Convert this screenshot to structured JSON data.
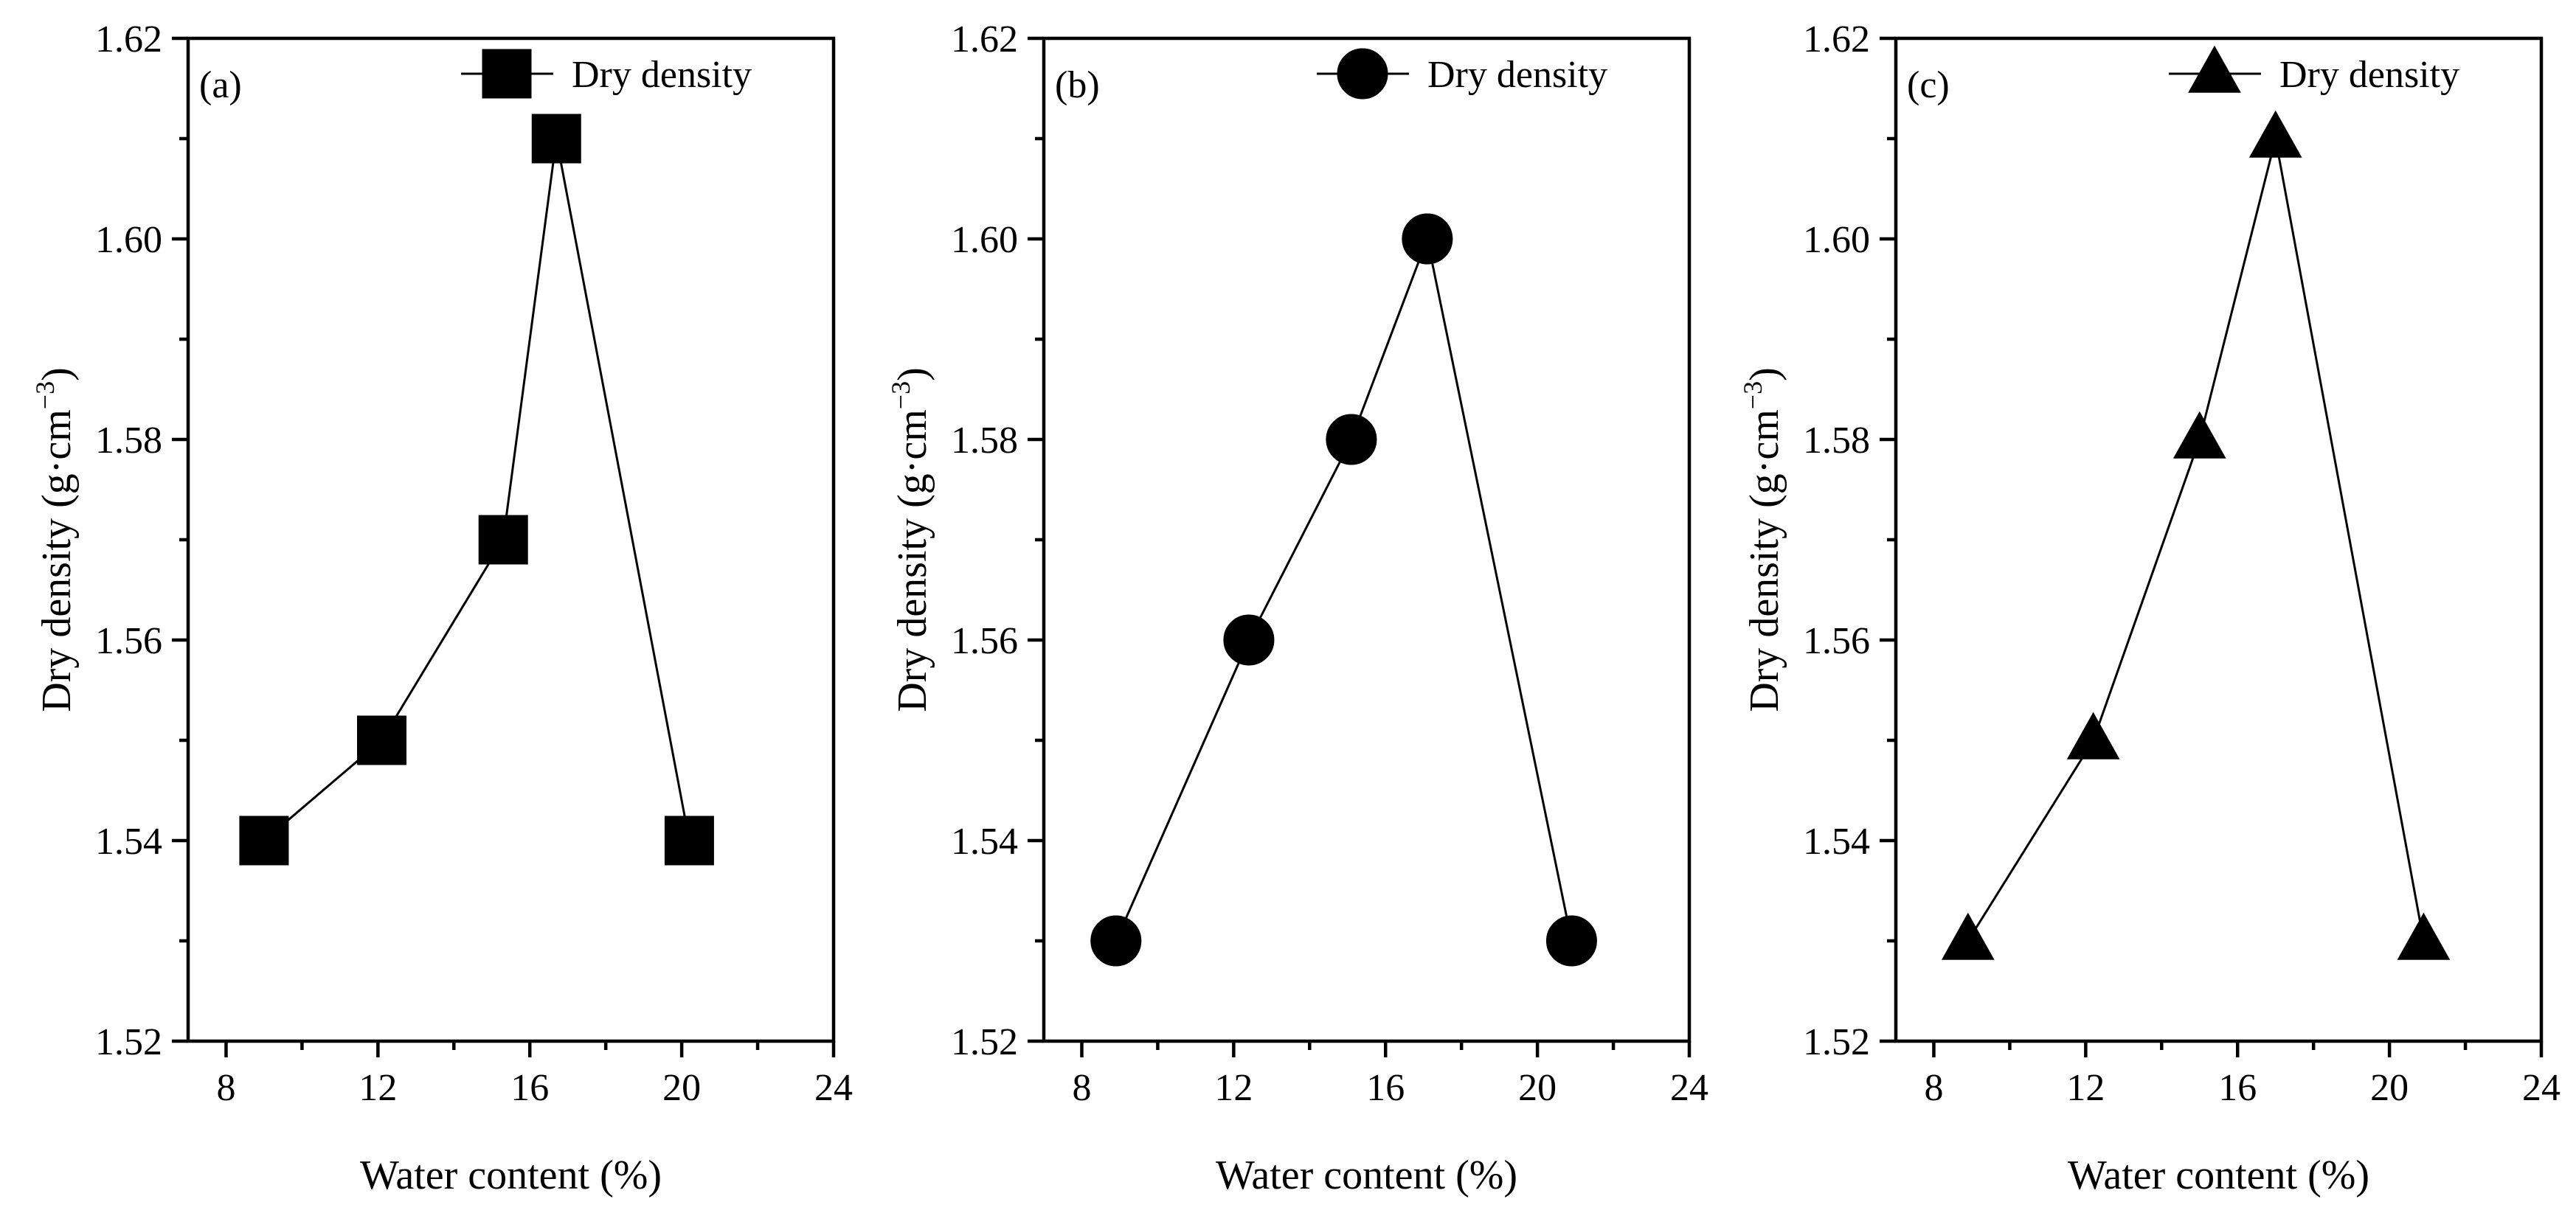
{
  "figure": {
    "ylabel_main": "Dry density (g·cm",
    "ylabel_sup": "−3",
    "ylabel_close": ")"
  },
  "chart_data": [
    {
      "type": "line",
      "panel_label": "(a)",
      "marker": "square",
      "legend": "Dry density",
      "title": "",
      "xlabel": "Water content (%)",
      "ylabel": "Dry density (g·cm−3)",
      "xlim": [
        7,
        24
      ],
      "ylim": [
        1.52,
        1.62
      ],
      "xticks": [
        8,
        12,
        16,
        20,
        24
      ],
      "yticks": [
        1.52,
        1.54,
        1.56,
        1.58,
        1.6,
        1.62
      ],
      "xtick_labels": [
        "8",
        "12",
        "16",
        "20",
        "24"
      ],
      "ytick_labels": [
        "1.52",
        "1.54",
        "1.56",
        "1.58",
        "1.60",
        "1.62"
      ],
      "series": [
        {
          "name": "Dry density",
          "x": [
            9.0,
            12.1,
            15.3,
            16.7,
            20.2
          ],
          "y": [
            1.54,
            1.55,
            1.57,
            1.61,
            1.54
          ]
        }
      ]
    },
    {
      "type": "line",
      "panel_label": "(b)",
      "marker": "circle",
      "legend": "Dry density",
      "title": "",
      "xlabel": "Water content (%)",
      "ylabel": "Dry density (g·cm−3)",
      "xlim": [
        7,
        24
      ],
      "ylim": [
        1.52,
        1.62
      ],
      "xticks": [
        8,
        12,
        16,
        20,
        24
      ],
      "yticks": [
        1.52,
        1.54,
        1.56,
        1.58,
        1.6,
        1.62
      ],
      "xtick_labels": [
        "8",
        "12",
        "16",
        "20",
        "24"
      ],
      "ytick_labels": [
        "1.52",
        "1.54",
        "1.56",
        "1.58",
        "1.60",
        "1.62"
      ],
      "series": [
        {
          "name": "Dry density",
          "x": [
            8.9,
            12.4,
            15.1,
            17.1,
            20.9
          ],
          "y": [
            1.53,
            1.56,
            1.58,
            1.6,
            1.53
          ]
        }
      ]
    },
    {
      "type": "line",
      "panel_label": "(c)",
      "marker": "triangle",
      "legend": "Dry density",
      "title": "",
      "xlabel": "Water content (%)",
      "ylabel": "Dry density (g·cm−3)",
      "xlim": [
        7,
        24
      ],
      "ylim": [
        1.52,
        1.62
      ],
      "xticks": [
        8,
        12,
        16,
        20,
        24
      ],
      "yticks": [
        1.52,
        1.54,
        1.56,
        1.58,
        1.6,
        1.62
      ],
      "xtick_labels": [
        "8",
        "12",
        "16",
        "20",
        "24"
      ],
      "ytick_labels": [
        "1.52",
        "1.54",
        "1.56",
        "1.58",
        "1.60",
        "1.62"
      ],
      "series": [
        {
          "name": "Dry density",
          "x": [
            8.9,
            12.2,
            15.0,
            17.0,
            20.9
          ],
          "y": [
            1.53,
            1.55,
            1.58,
            1.61,
            1.53
          ]
        }
      ]
    }
  ]
}
